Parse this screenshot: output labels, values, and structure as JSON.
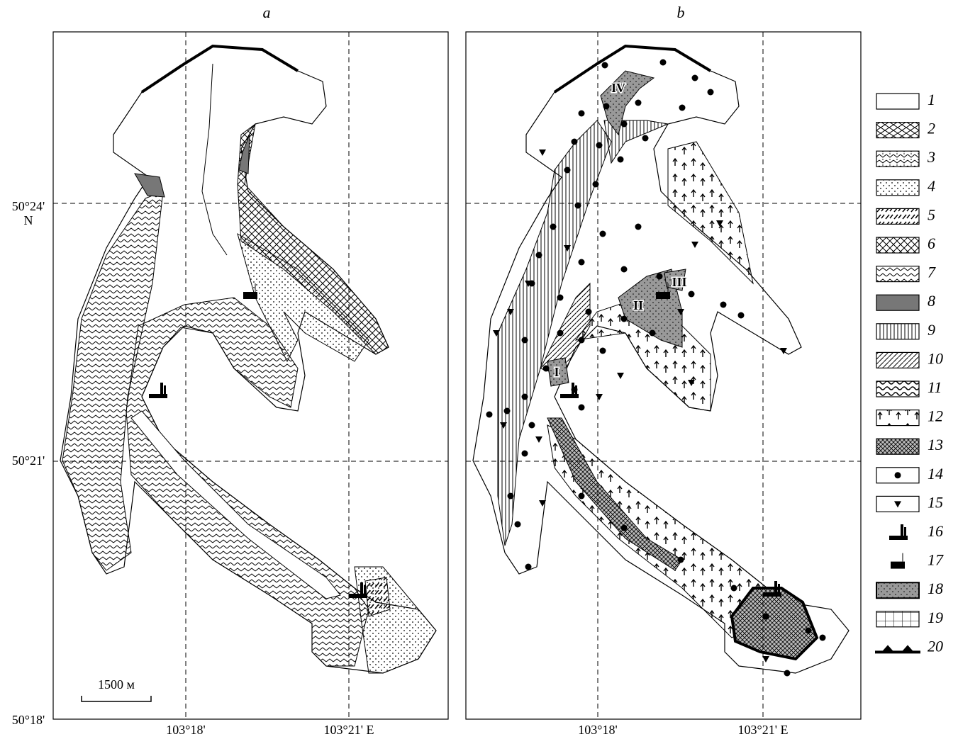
{
  "panels": [
    {
      "label": "a"
    },
    {
      "label": "b",
      "zones": [
        "I",
        "II",
        "III",
        "IV"
      ]
    }
  ],
  "latitude_labels": {
    "top": "50°24'",
    "hemisphere": "N",
    "middle": "50°21'",
    "bottom": "50°18'"
  },
  "longitude_labels": [
    "103°18'",
    "103°21' E"
  ],
  "scale_bar": "1500 м",
  "legend": [
    "1",
    "2",
    "3",
    "4",
    "5",
    "6",
    "7",
    "8",
    "9",
    "10",
    "11",
    "12",
    "13",
    "14",
    "15",
    "16",
    "17",
    "18",
    "19",
    "20"
  ]
}
